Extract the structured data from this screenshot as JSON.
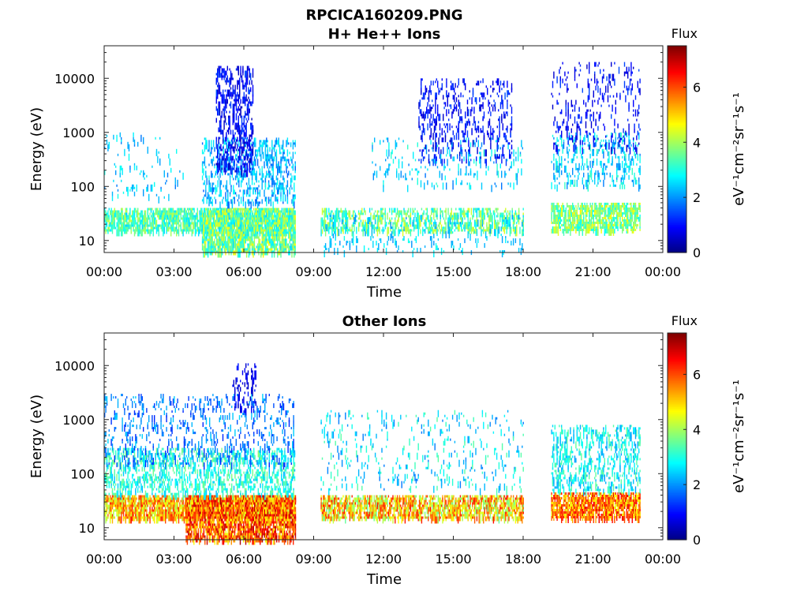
{
  "figure": {
    "title": "RPCICA160209.PNG"
  },
  "chart_data": [
    {
      "type": "heatmap",
      "title": "H+ He++ Ions",
      "xlabel": "Time",
      "ylabel": "Energy (eV)",
      "x_ticks": [
        "00:00",
        "03:00",
        "06:00",
        "09:00",
        "12:00",
        "15:00",
        "18:00",
        "21:00",
        "00:00"
      ],
      "xlim_hours": [
        0,
        24
      ],
      "y_scale": "log",
      "y_ticks": [
        "10",
        "100",
        "1000",
        "10000"
      ],
      "ylim": [
        6,
        40000
      ],
      "colorbar": {
        "title": "Flux",
        "units": "eV⁻¹cm⁻²sr⁻¹s⁻¹",
        "ticks": [
          "0",
          "2",
          "4",
          "6"
        ],
        "range": [
          0,
          7.5
        ],
        "colormap": "jet"
      },
      "data_gaps_hours": [
        [
          8.2,
          9.3
        ],
        [
          18.0,
          19.2
        ]
      ],
      "regions": [
        {
          "t": [
            0,
            8.2
          ],
          "e": [
            15,
            40
          ],
          "flux": [
            2.5,
            4.3
          ],
          "density": 0.55
        },
        {
          "t": [
            0,
            3.4
          ],
          "e": [
            60,
            1000
          ],
          "flux": [
            1.8,
            3.0
          ],
          "density": 0.05
        },
        {
          "t": [
            4.2,
            8.2
          ],
          "e": [
            6,
            40
          ],
          "flux": [
            2.5,
            4.8
          ],
          "density": 0.65
        },
        {
          "t": [
            4.2,
            8.2
          ],
          "e": [
            50,
            800
          ],
          "flux": [
            1.6,
            3.0
          ],
          "density": 0.25
        },
        {
          "t": [
            4.8,
            6.4
          ],
          "e": [
            200,
            17000
          ],
          "flux": [
            0.4,
            1.5
          ],
          "density": 0.3
        },
        {
          "t": [
            9.3,
            18.0
          ],
          "e": [
            15,
            40
          ],
          "flux": [
            2.5,
            4.5
          ],
          "density": 0.35
        },
        {
          "t": [
            9.3,
            18.0
          ],
          "e": [
            6,
            30
          ],
          "flux": [
            2.0,
            3.0
          ],
          "density": 0.08
        },
        {
          "t": [
            11.5,
            18.0
          ],
          "e": [
            100,
            800
          ],
          "flux": [
            1.8,
            3.2
          ],
          "density": 0.08
        },
        {
          "t": [
            13.5,
            17.5
          ],
          "e": [
            300,
            10000
          ],
          "flux": [
            0.5,
            1.5
          ],
          "density": 0.15
        },
        {
          "t": [
            19.2,
            23.0
          ],
          "e": [
            15,
            50
          ],
          "flux": [
            2.8,
            4.8
          ],
          "density": 0.6
        },
        {
          "t": [
            19.2,
            23.0
          ],
          "e": [
            100,
            1000
          ],
          "flux": [
            1.8,
            3.3
          ],
          "density": 0.15
        },
        {
          "t": [
            19.2,
            23.0
          ],
          "e": [
            500,
            20000
          ],
          "flux": [
            0.5,
            1.5
          ],
          "density": 0.1
        }
      ]
    },
    {
      "type": "heatmap",
      "title": "Other Ions",
      "xlabel": "Time",
      "ylabel": "Energy (eV)",
      "x_ticks": [
        "00:00",
        "03:00",
        "06:00",
        "09:00",
        "12:00",
        "15:00",
        "18:00",
        "21:00",
        "00:00"
      ],
      "xlim_hours": [
        0,
        24
      ],
      "y_scale": "log",
      "y_ticks": [
        "10",
        "100",
        "1000",
        "10000"
      ],
      "ylim": [
        6,
        40000
      ],
      "colorbar": {
        "title": "Flux",
        "units": "eV⁻¹cm⁻²sr⁻¹s⁻¹",
        "ticks": [
          "0",
          "2",
          "4",
          "6"
        ],
        "range": [
          0,
          7.5
        ],
        "colormap": "jet"
      },
      "data_gaps_hours": [
        [
          8.2,
          9.3
        ],
        [
          18.0,
          19.2
        ]
      ],
      "regions": [
        {
          "t": [
            0,
            8.2
          ],
          "e": [
            15,
            40
          ],
          "flux": [
            4.0,
            6.5
          ],
          "density": 0.75
        },
        {
          "t": [
            3.5,
            8.2
          ],
          "e": [
            6,
            40
          ],
          "flux": [
            4.5,
            7.2
          ],
          "density": 0.7
        },
        {
          "t": [
            0,
            8.2
          ],
          "e": [
            40,
            300
          ],
          "flux": [
            2.3,
            3.8
          ],
          "density": 0.3
        },
        {
          "t": [
            0,
            8.2
          ],
          "e": [
            150,
            3000
          ],
          "flux": [
            1.2,
            2.5
          ],
          "density": 0.12
        },
        {
          "t": [
            5.5,
            6.5
          ],
          "e": [
            1500,
            11000
          ],
          "flux": [
            0.4,
            1.2
          ],
          "density": 0.2
        },
        {
          "t": [
            9.3,
            18.0
          ],
          "e": [
            15,
            40
          ],
          "flux": [
            3.5,
            6.5
          ],
          "density": 0.6
        },
        {
          "t": [
            9.3,
            18.0
          ],
          "e": [
            50,
            1500
          ],
          "flux": [
            1.8,
            3.5
          ],
          "density": 0.06
        },
        {
          "t": [
            19.2,
            23.0
          ],
          "e": [
            15,
            45
          ],
          "flux": [
            4.5,
            6.8
          ],
          "density": 0.75
        },
        {
          "t": [
            19.2,
            23.0
          ],
          "e": [
            50,
            800
          ],
          "flux": [
            2.0,
            3.6
          ],
          "density": 0.25
        }
      ]
    }
  ]
}
